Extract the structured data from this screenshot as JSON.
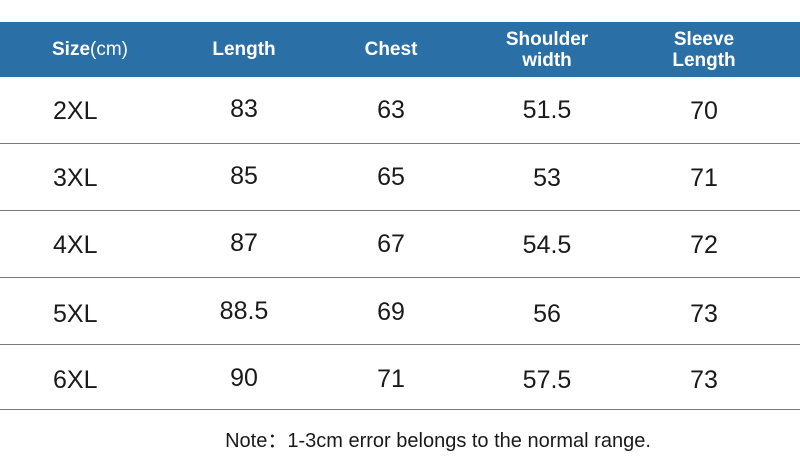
{
  "table": {
    "headers": {
      "size": "Size",
      "size_unit": "(cm)",
      "length": "Length",
      "chest": "Chest",
      "shoulder_line1": "Shoulder",
      "shoulder_line2": "width",
      "sleeve_line1": "Sleeve",
      "sleeve_line2": "Length"
    },
    "rows": [
      {
        "size": "2XL",
        "length": "83",
        "chest": "63",
        "shoulder": "51.5",
        "sleeve": "70"
      },
      {
        "size": "3XL",
        "length": "85",
        "chest": "65",
        "shoulder": "53",
        "sleeve": "71"
      },
      {
        "size": "4XL",
        "length": "87",
        "chest": "67",
        "shoulder": "54.5",
        "sleeve": "72"
      },
      {
        "size": "5XL",
        "length": "88.5",
        "chest": "69",
        "shoulder": "56",
        "sleeve": "73"
      },
      {
        "size": "6XL",
        "length": "90",
        "chest": "71",
        "shoulder": "57.5",
        "sleeve": "73"
      }
    ]
  },
  "note": "Note：1-3cm error belongs to the normal range.",
  "colors": {
    "header_bg": "#2a6fa6",
    "header_text": "#ffffff"
  }
}
